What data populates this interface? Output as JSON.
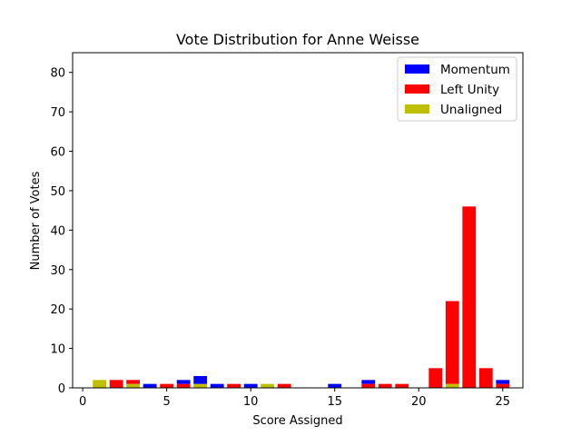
{
  "chart_data": {
    "type": "bar",
    "stacked": true,
    "title": "Vote Distribution for Anne Weisse",
    "xlabel": "Score Assigned",
    "ylabel": "Number of Votes",
    "xlim": [
      -0.6,
      26.2
    ],
    "ylim": [
      0,
      85
    ],
    "xticks": [
      0,
      5,
      10,
      15,
      20,
      25
    ],
    "yticks": [
      0,
      10,
      20,
      30,
      40,
      50,
      60,
      70,
      80
    ],
    "x": [
      1,
      2,
      3,
      4,
      5,
      6,
      7,
      8,
      9,
      10,
      11,
      12,
      13,
      14,
      15,
      16,
      17,
      18,
      19,
      20,
      21,
      22,
      23,
      24,
      25
    ],
    "series": [
      {
        "name": "Unaligned",
        "color": "#bfbf00",
        "values": [
          2,
          0,
          1,
          0,
          0,
          0,
          1,
          0,
          0,
          0,
          1,
          0,
          0,
          0,
          0,
          0,
          0,
          0,
          0,
          0,
          0,
          1,
          0,
          0,
          0
        ]
      },
      {
        "name": "Left Unity",
        "color": "#ff0000",
        "values": [
          0,
          2,
          1,
          0,
          1,
          1,
          0,
          0,
          1,
          0,
          0,
          1,
          0,
          0,
          0,
          0,
          1,
          1,
          1,
          0,
          5,
          21,
          46,
          5,
          1
        ]
      },
      {
        "name": "Momentum",
        "color": "#0000ff",
        "values": [
          0,
          0,
          0,
          1,
          0,
          1,
          2,
          1,
          0,
          1,
          0,
          0,
          0,
          0,
          1,
          0,
          1,
          0,
          0,
          0,
          0,
          0,
          0,
          0,
          1
        ]
      }
    ],
    "legend": {
      "placement": "upper right",
      "order": [
        "Momentum",
        "Left Unity",
        "Unaligned"
      ]
    },
    "grid": false
  }
}
